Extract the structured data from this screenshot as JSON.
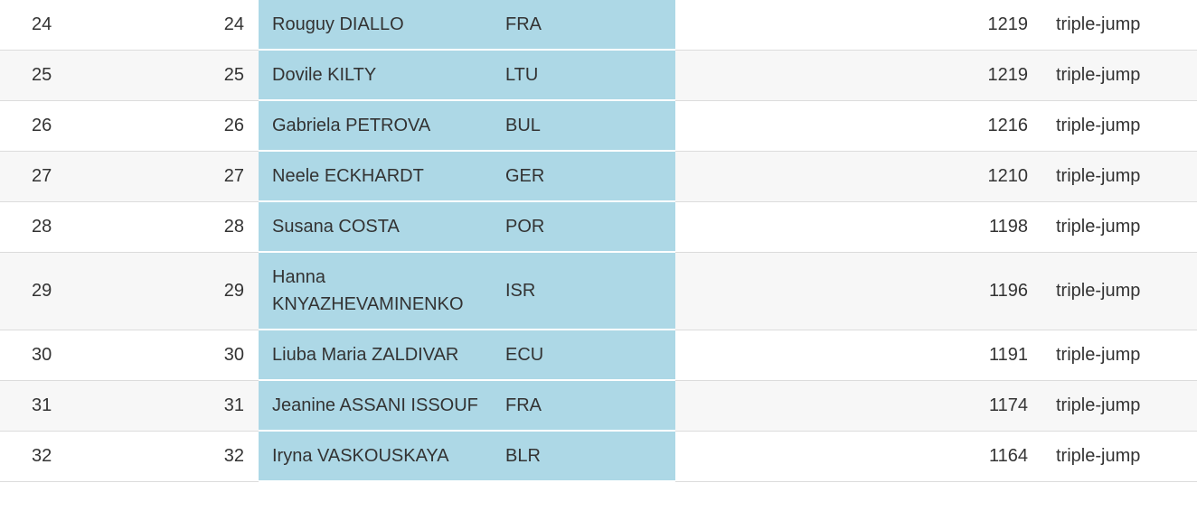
{
  "table": {
    "rows": [
      [
        24,
        24,
        "Rouguy DIALLO",
        "FRA",
        1219,
        "triple-jump"
      ],
      [
        25,
        25,
        "Dovile KILTY",
        "LTU",
        1219,
        "triple-jump"
      ],
      [
        26,
        26,
        "Gabriela PETROVA",
        "BUL",
        1216,
        "triple-jump"
      ],
      [
        27,
        27,
        "Neele ECKHARDT",
        "GER",
        1210,
        "triple-jump"
      ],
      [
        28,
        28,
        "Susana COSTA",
        "POR",
        1198,
        "triple-jump"
      ],
      [
        29,
        29,
        "Hanna KNYAZHEVAMINENKO",
        "ISR",
        1196,
        "triple-jump"
      ],
      [
        30,
        30,
        "Liuba Maria ZALDIVAR",
        "ECU",
        1191,
        "triple-jump"
      ],
      [
        31,
        31,
        "Jeanine ASSANI ISSOUF",
        "FRA",
        1174,
        "triple-jump"
      ],
      [
        32,
        32,
        "Iryna VASKOUSKAYA",
        "BLR",
        1164,
        "triple-jump"
      ]
    ]
  }
}
